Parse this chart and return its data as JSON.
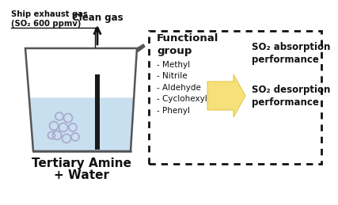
{
  "background_color": "#ffffff",
  "clean_gas_label": "Clean gas",
  "exhaust_line1": "Ship exhaust gas",
  "exhaust_line2": "(SO₂ 600 ppmv)",
  "bottom_label_line1": "Tertiary Amine",
  "bottom_label_line2": "+ Water",
  "functional_group_title": "Functional\ngroup",
  "functional_group_items": [
    "- Methyl",
    "- Nitrile",
    "- Aldehyde",
    "- Cyclohexyl",
    "- Phenyl"
  ],
  "right_text_top": "SO₂ absorption\nperformance",
  "right_text_bot": "SO₂ desorption\nperformance",
  "beaker_fill_color": "#c8dff0",
  "arrow_fill_color": "#f5e07a",
  "arrow_edge_color": "#e8c84a",
  "dashed_box_color": "#111111",
  "text_color": "#111111",
  "beaker_edge_color": "#555555"
}
